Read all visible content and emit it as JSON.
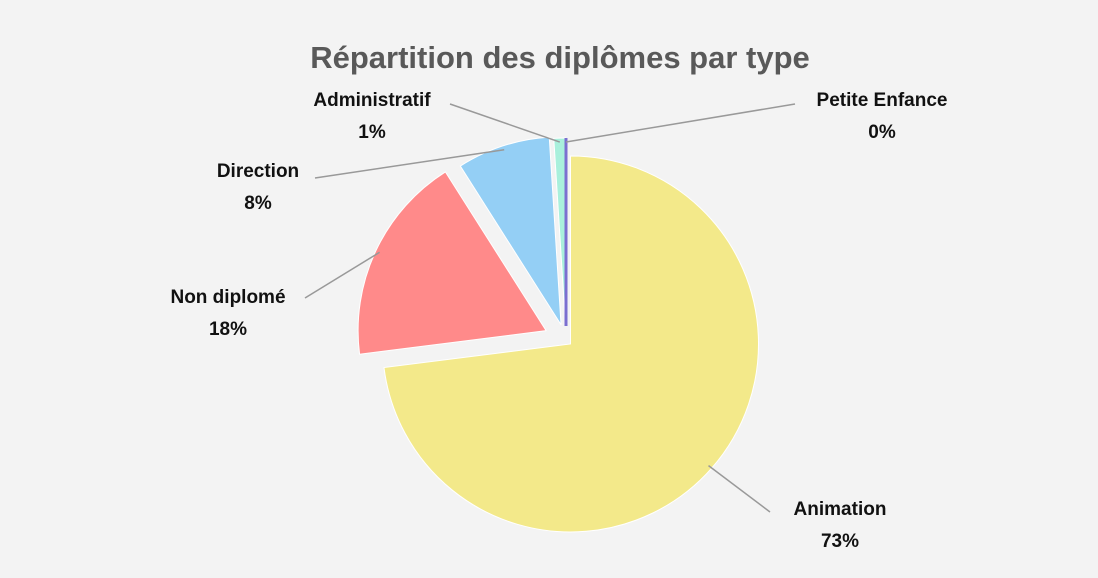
{
  "chart_data": {
    "type": "pie",
    "title": "Répartition des diplômes par type",
    "categories": [
      "Animation",
      "Non diplomé",
      "Direction",
      "Administratif",
      "Petite Enfance"
    ],
    "values": [
      73,
      18,
      8,
      1,
      0
    ],
    "value_labels": [
      "73%",
      "18%",
      "8%",
      "1%",
      "0%"
    ],
    "colors": [
      "#f3e98a",
      "#ff8a8a",
      "#94cff5",
      "#a9f0dc",
      "#7b6fd0"
    ]
  }
}
